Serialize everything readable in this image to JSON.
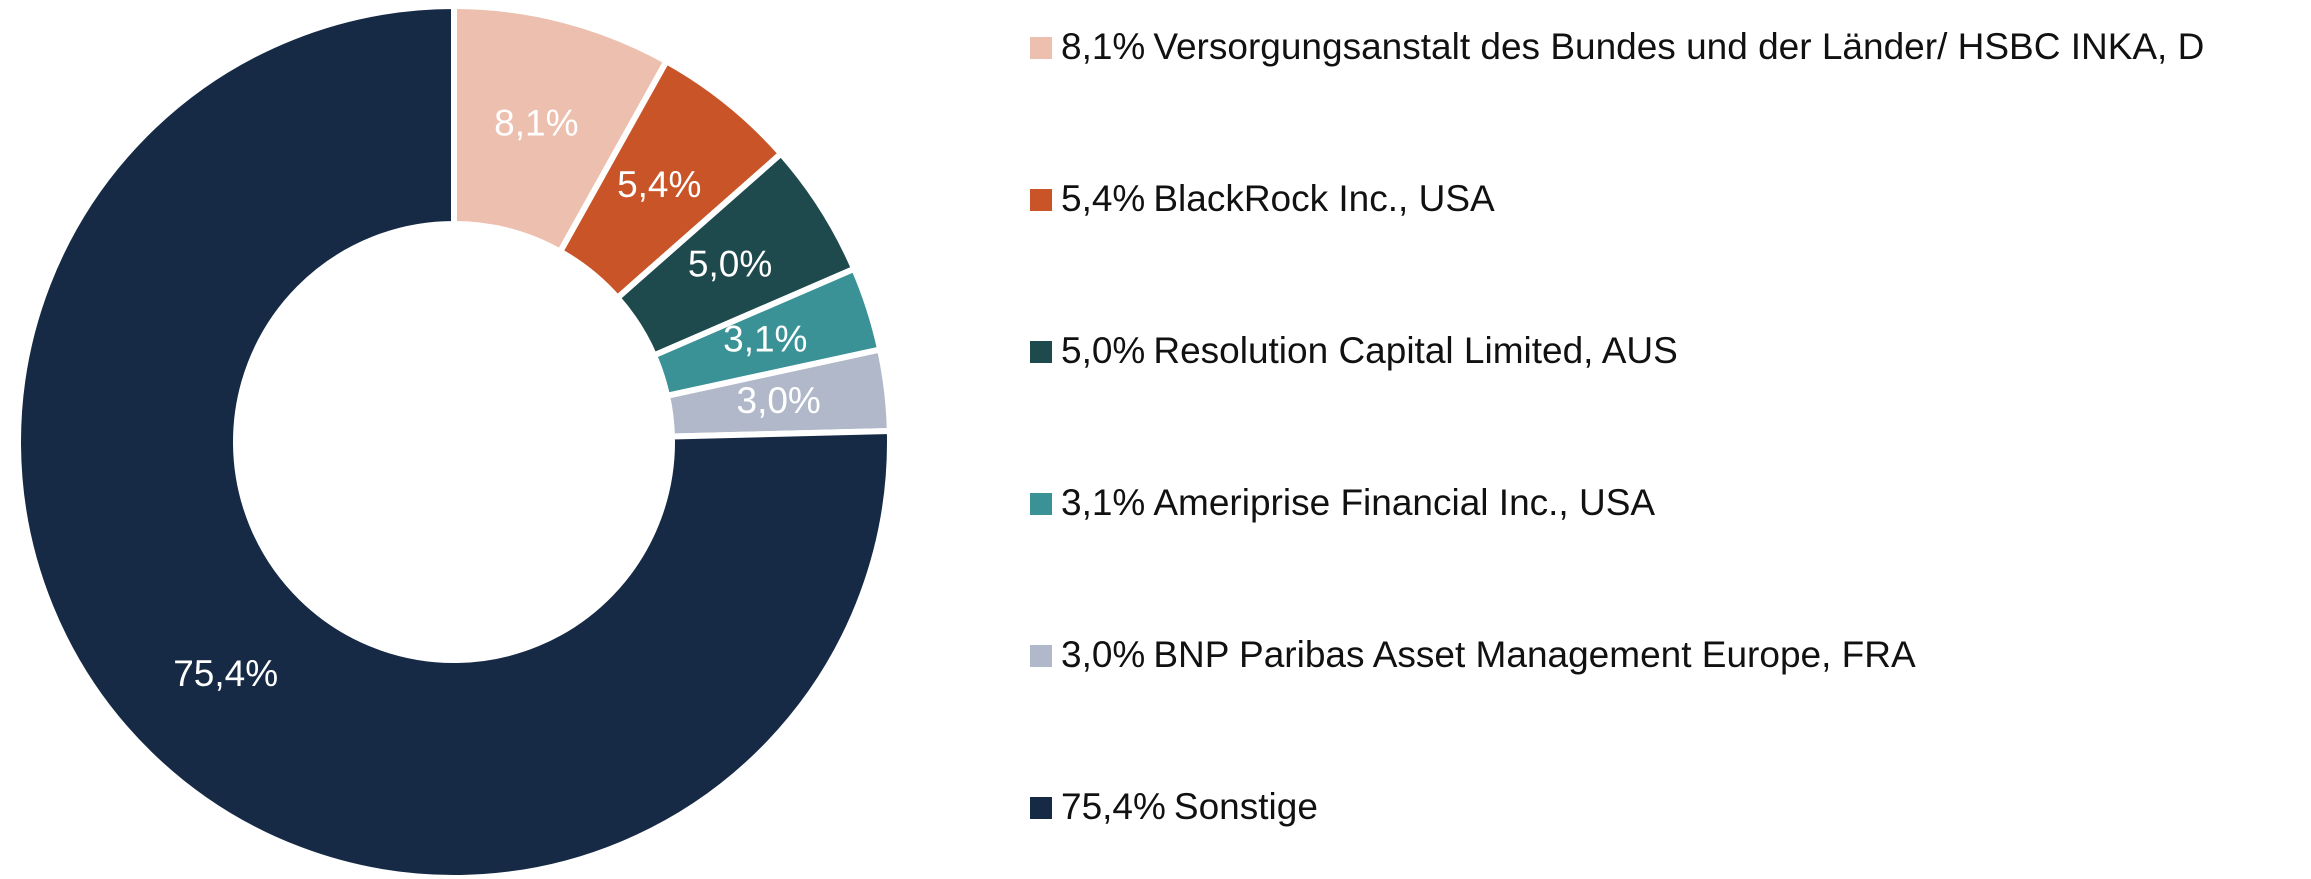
{
  "chart_data": {
    "type": "donut",
    "categories": [
      "Versorgungsanstalt des Bundes und der Länder/ HSBC INKA, D",
      "BlackRock Inc., USA",
      "Resolution Capital Limited, AUS",
      "Ameriprise Financial Inc., USA",
      "BNP Paribas Asset Management Europe, FRA",
      "Sonstige"
    ],
    "values": [
      8.1,
      5.4,
      5.0,
      3.1,
      3.0,
      75.4
    ],
    "value_labels": [
      "8,1%",
      "5,4%",
      "5,0%",
      "3,1%",
      "3,0%",
      "75,4%"
    ],
    "colors": [
      "#ecbfae",
      "#c85428",
      "#1f4a4d",
      "#3a9296",
      "#b1b8c9",
      "#162a45"
    ]
  }
}
